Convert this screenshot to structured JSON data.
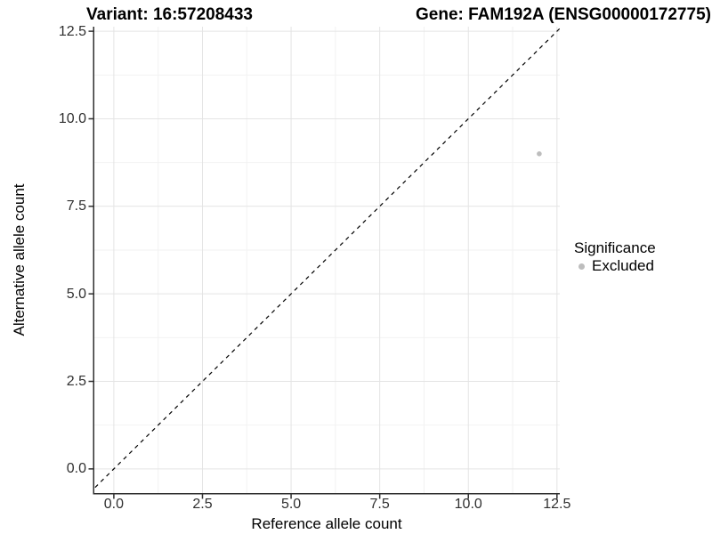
{
  "header": {
    "variant_label": "Variant: 16:57208433",
    "gene_label": "Gene: FAM192A (ENSG00000172775)"
  },
  "chart_data": {
    "type": "scatter",
    "xlabel": "Reference allele count",
    "ylabel": "Alternative allele count",
    "x_ticks": [
      0.0,
      2.5,
      5.0,
      7.5,
      10.0,
      12.5
    ],
    "y_ticks": [
      0.0,
      2.5,
      5.0,
      7.5,
      10.0,
      12.5
    ],
    "x_tick_labels": [
      "0.0",
      "2.5",
      "5.0",
      "7.5",
      "10.0",
      "12.5"
    ],
    "y_tick_labels": [
      "0.0",
      "2.5",
      "5.0",
      "7.5",
      "10.0",
      "12.5"
    ],
    "xlim": [
      -0.55,
      12.58
    ],
    "ylim": [
      -0.69,
      12.63
    ],
    "grid": "major+minor",
    "points": [
      {
        "x": 12,
        "y": 9,
        "series": "Excluded"
      }
    ],
    "identity_line": {
      "style": "dashed",
      "from": [
        -0.69,
        -0.69
      ],
      "to": [
        12.63,
        12.63
      ]
    },
    "legend_position": "right"
  },
  "legend": {
    "title": "Significance",
    "items": [
      {
        "label": "Excluded",
        "color": "#bdbdbd"
      }
    ]
  },
  "colors": {
    "background": "#ffffff",
    "grid_major": "#e4e4e4",
    "grid_minor": "#f2f2f2",
    "axis_line": "#2f2f2f",
    "tick_mark": "#2f2f2f",
    "tick_text": "#303030",
    "identity_line": "#000000",
    "point": "#bdbdbd"
  }
}
